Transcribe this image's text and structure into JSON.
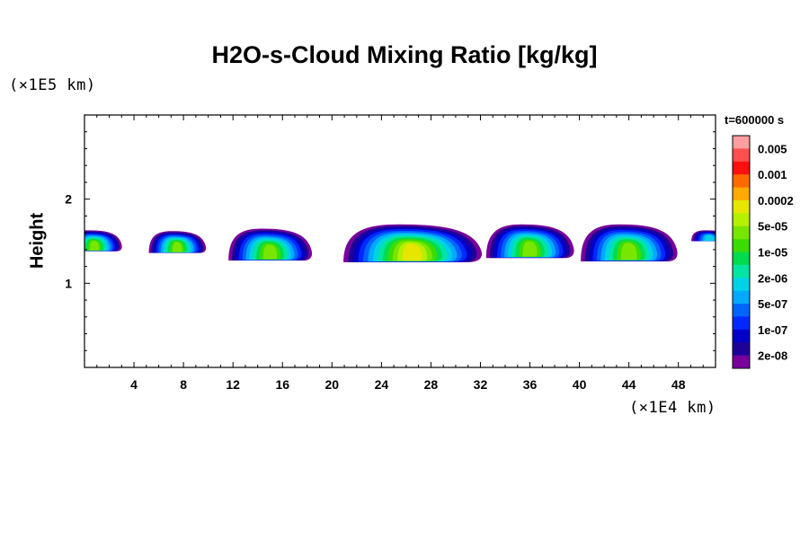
{
  "chart_data": {
    "type": "heatmap",
    "title": "H2O-s-Cloud Mixing Ratio [kg/kg]",
    "xlabel": "",
    "ylabel": "Height",
    "x_unit_label": "(×1E4 km)",
    "y_unit_label": "(×1E5 km)",
    "time_label": "t=600000 s",
    "xlim": [
      0,
      51
    ],
    "ylim": [
      0,
      3
    ],
    "x_ticks": [
      4,
      8,
      12,
      16,
      20,
      24,
      28,
      32,
      36,
      40,
      44,
      48
    ],
    "x_tick_labels": [
      "4",
      "8",
      "12",
      "16",
      "20",
      "24",
      "28",
      "32",
      "36",
      "40",
      "44",
      "48"
    ],
    "y_ticks": [
      1,
      2
    ],
    "y_tick_labels": [
      "1",
      "2"
    ],
    "colorbar": {
      "labels": [
        "0.005",
        "0.001",
        "0.0002",
        "5e-05",
        "1e-05",
        "2e-06",
        "5e-07",
        "1e-07",
        "2e-08"
      ],
      "colors_top_to_bottom": [
        "#ff9f9f",
        "#ff5050",
        "#ff1010",
        "#ff6a00",
        "#ffaa00",
        "#e6e600",
        "#b4f000",
        "#78e600",
        "#3cdc00",
        "#00dc50",
        "#00e6a0",
        "#00d2e6",
        "#00aaff",
        "#0064ff",
        "#0028ff",
        "#0000c8",
        "#1e0096",
        "#78009b"
      ]
    },
    "clouds": [
      {
        "x_center": 0.8,
        "top": 1.63,
        "bottom": 1.38,
        "peak_level": "1e-05"
      },
      {
        "x_center": 7.5,
        "top": 1.62,
        "bottom": 1.36,
        "peak_level": "1e-05"
      },
      {
        "x_center": 15.0,
        "top": 1.65,
        "bottom": 1.27,
        "peak_level": "1e-05"
      },
      {
        "x_center": 26.5,
        "top": 1.7,
        "bottom": 1.25,
        "peak_level": "5e-05"
      },
      {
        "x_center": 36.0,
        "top": 1.7,
        "bottom": 1.3,
        "peak_level": "1e-05"
      },
      {
        "x_center": 44.0,
        "top": 1.7,
        "bottom": 1.26,
        "peak_level": "1e-05"
      },
      {
        "x_center": 50.5,
        "top": 1.63,
        "bottom": 1.5,
        "peak_level": "5e-07"
      }
    ]
  }
}
